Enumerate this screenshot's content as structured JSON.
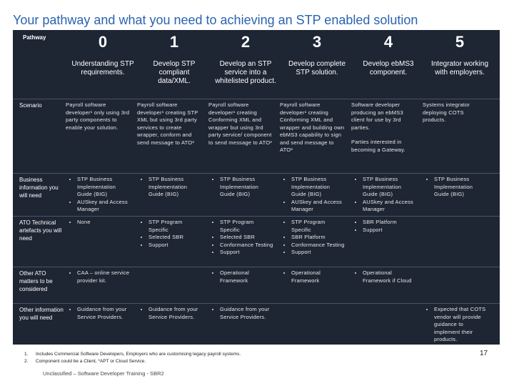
{
  "title": "Your pathway and what you need to achieving an STP enabled solution",
  "header": {
    "label": "Pathway",
    "steps": [
      "0",
      "1",
      "2",
      "3",
      "4",
      "5"
    ],
    "descriptions": [
      "Understanding STP requirements.",
      "Develop STP compliant data/XML.",
      "Develop an STP service into a whitelisted product.",
      "Develop complete STP solution.",
      "Develop ebMS3 component.",
      "Integrator working with employers."
    ]
  },
  "rows": [
    {
      "label": "Scenario",
      "cells": [
        {
          "text": [
            "Payroll software developer¹ only using 3rd party components to enable your solution."
          ]
        },
        {
          "text": [
            "Payroll software developer¹ creating STP XML but using 3rd party services to create wrapper, conform and send message to ATO²"
          ]
        },
        {
          "text": [
            "Payroll software developer¹ creating Conforming XML and wrapper but using 3rd party service/ component to send message to ATO²"
          ]
        },
        {
          "text": [
            "Payroll software developer¹ creating Conforming XML and wrapper and building own ebMS3 capability to sign and send message to ATO²"
          ]
        },
        {
          "text": [
            "Software developer producing an ebMS3 client for use by 3rd parties.",
            "Parties interested in becoming a Gateway."
          ]
        },
        {
          "text": [
            "Systems integrator deploying COTS products."
          ]
        }
      ]
    },
    {
      "label": "Business information you will need",
      "cells": [
        {
          "bullets": [
            "STP Business Implementation Guide (BIG)",
            "AUSkey and Access Manager"
          ]
        },
        {
          "bullets": [
            "STP Business Implementation Guide (BIG)"
          ]
        },
        {
          "bullets": [
            "STP Business Implementation Guide (BIG)"
          ]
        },
        {
          "bullets": [
            "STP Business Implementation Guide (BIG)",
            "AUSkey and Access Manager"
          ]
        },
        {
          "bullets": [
            "STP Business Implementation Guide (BIG)",
            "AUSkey and Access Manager"
          ]
        },
        {
          "bullets": [
            "STP Business Implementation Guide (BIG)"
          ]
        }
      ]
    },
    {
      "label": "ATO Technical artefacts you will need",
      "cells": [
        {
          "bullets": [
            "None"
          ]
        },
        {
          "bullets": [
            "STP Program Specific",
            "Selected SBR",
            "Support"
          ]
        },
        {
          "bullets": [
            "STP Program Specific",
            "Selected SBR",
            "Conformance Testing",
            "Support"
          ]
        },
        {
          "bullets": [
            "STP Program Specific",
            "SBR Platform",
            "Conformance Testing",
            "Support"
          ]
        },
        {
          "bullets": [
            "SBR Platform",
            "Support"
          ]
        },
        {
          "bullets": []
        }
      ]
    },
    {
      "label": "Other ATO matters to be considered",
      "cells": [
        {
          "bullets": [
            "CAA – online service provider kit."
          ]
        },
        {
          "bullets": []
        },
        {
          "bullets": [
            "Operational Framework"
          ]
        },
        {
          "bullets": [
            "Operational Framework"
          ]
        },
        {
          "bullets": [
            "Operational Framework if Cloud"
          ]
        },
        {
          "bullets": []
        }
      ]
    },
    {
      "label": "Other information you will need",
      "cells": [
        {
          "bullets": [
            "Guidance from your Service Providers."
          ]
        },
        {
          "bullets": [
            "Guidance from your Service Providers."
          ]
        },
        {
          "bullets": [
            "Guidance from your Service Providers."
          ]
        },
        {
          "bullets": []
        },
        {
          "bullets": []
        },
        {
          "bullets": [
            "Expected that COTS vendor will provide guidance to implement their products."
          ]
        }
      ]
    }
  ],
  "footnotes": [
    "Includes Commercial Software Developers, Employers who are customising legacy payroll systems.",
    "Component could be a Client, *APT or Cloud Service."
  ],
  "footer": "Unclassified – Software Developer Training - SBR2",
  "page": "17"
}
